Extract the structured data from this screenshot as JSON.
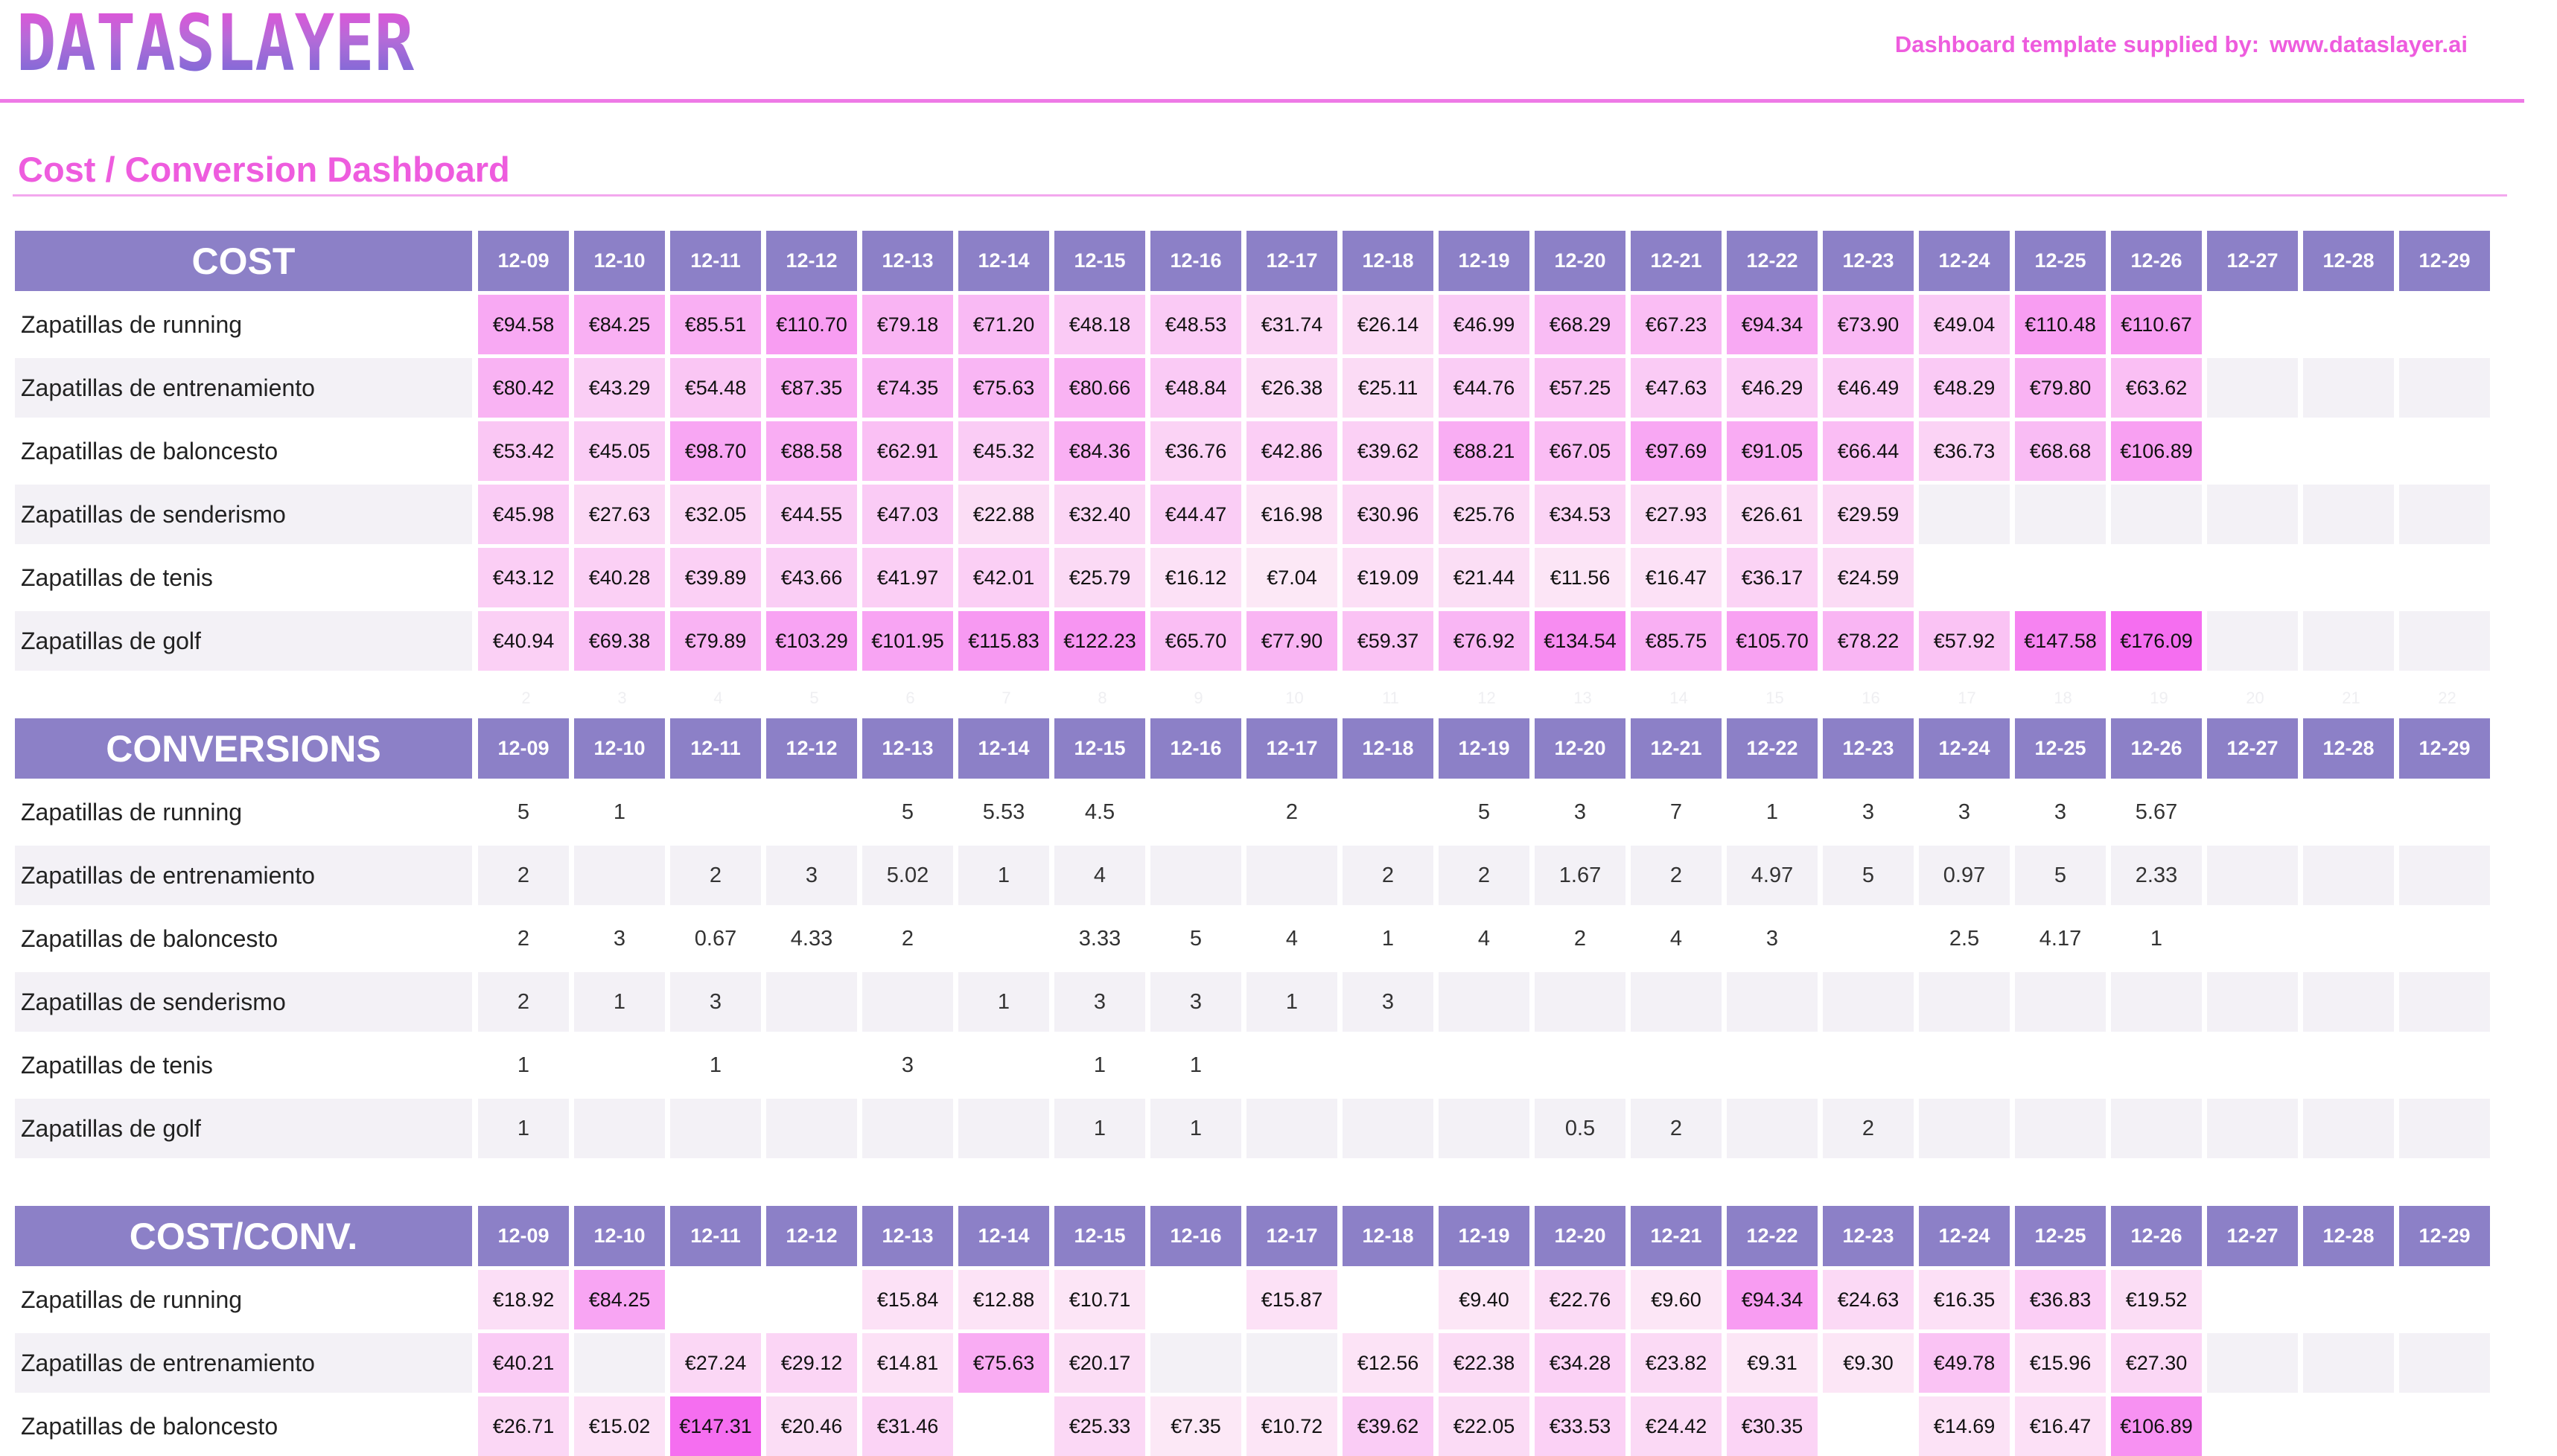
{
  "header": {
    "logo_text": "DATASLAYER",
    "supplied_label": "Dashboard template supplied by:",
    "supplied_url": "www.dataslayer.ai"
  },
  "title": "Cost / Conversion Dashboard",
  "colors": {
    "accent": "#ee5cde",
    "header_bg": "#8c80c7",
    "row_alt": "#f3f1f6",
    "heat_low": "#fbe4f4",
    "heat_high": "#f56ff0"
  },
  "dates": [
    "12-09",
    "12-10",
    "12-11",
    "12-12",
    "12-13",
    "12-14",
    "12-15",
    "12-16",
    "12-17",
    "12-18",
    "12-19",
    "12-20",
    "12-21",
    "12-22",
    "12-23",
    "12-24",
    "12-25",
    "12-26",
    "12-27",
    "12-28",
    "12-29"
  ],
  "index_row": [
    "2",
    "3",
    "4",
    "5",
    "6",
    "7",
    "8",
    "9",
    "10",
    "11",
    "12",
    "13",
    "14",
    "15",
    "16",
    "17",
    "18",
    "19",
    "20",
    "21",
    "22"
  ],
  "cost": {
    "label": "COST",
    "rows": [
      {
        "name": "Zapatillas de running",
        "values": [
          "€94.58",
          "€84.25",
          "€85.51",
          "€110.70",
          "€79.18",
          "€71.20",
          "€48.18",
          "€48.53",
          "€31.74",
          "€26.14",
          "€46.99",
          "€68.29",
          "€67.23",
          "€94.34",
          "€73.90",
          "€49.04",
          "€110.48",
          "€110.67",
          "",
          "",
          ""
        ]
      },
      {
        "name": "Zapatillas de entrenamiento",
        "values": [
          "€80.42",
          "€43.29",
          "€54.48",
          "€87.35",
          "€74.35",
          "€75.63",
          "€80.66",
          "€48.84",
          "€26.38",
          "€25.11",
          "€44.76",
          "€57.25",
          "€47.63",
          "€46.29",
          "€46.49",
          "€48.29",
          "€79.80",
          "€63.62",
          "",
          "",
          ""
        ]
      },
      {
        "name": "Zapatillas de baloncesto",
        "values": [
          "€53.42",
          "€45.05",
          "€98.70",
          "€88.58",
          "€62.91",
          "€45.32",
          "€84.36",
          "€36.76",
          "€42.86",
          "€39.62",
          "€88.21",
          "€67.05",
          "€97.69",
          "€91.05",
          "€66.44",
          "€36.73",
          "€68.68",
          "€106.89",
          "",
          "",
          ""
        ]
      },
      {
        "name": "Zapatillas de senderismo",
        "values": [
          "€45.98",
          "€27.63",
          "€32.05",
          "€44.55",
          "€47.03",
          "€22.88",
          "€32.40",
          "€44.47",
          "€16.98",
          "€30.96",
          "€25.76",
          "€34.53",
          "€27.93",
          "€26.61",
          "€29.59",
          "",
          "",
          "",
          "",
          "",
          ""
        ]
      },
      {
        "name": "Zapatillas de tenis",
        "values": [
          "€43.12",
          "€40.28",
          "€39.89",
          "€43.66",
          "€41.97",
          "€42.01",
          "€25.79",
          "€16.12",
          "€7.04",
          "€19.09",
          "€21.44",
          "€11.56",
          "€16.47",
          "€36.17",
          "€24.59",
          "",
          "",
          "",
          "",
          "",
          ""
        ]
      },
      {
        "name": "Zapatillas de golf",
        "values": [
          "€40.94",
          "€69.38",
          "€79.89",
          "€103.29",
          "€101.95",
          "€115.83",
          "€122.23",
          "€65.70",
          "€77.90",
          "€59.37",
          "€76.92",
          "€134.54",
          "€85.75",
          "€105.70",
          "€78.22",
          "€57.92",
          "€147.58",
          "€176.09",
          "",
          "",
          ""
        ]
      }
    ]
  },
  "conversions": {
    "label": "CONVERSIONS",
    "rows": [
      {
        "name": "Zapatillas de running",
        "values": [
          "5",
          "1",
          "",
          "",
          "5",
          "5.53",
          "4.5",
          "",
          "2",
          "",
          "5",
          "3",
          "7",
          "1",
          "3",
          "3",
          "3",
          "5.67",
          "",
          "",
          ""
        ]
      },
      {
        "name": "Zapatillas de entrenamiento",
        "values": [
          "2",
          "",
          "2",
          "3",
          "5.02",
          "1",
          "4",
          "",
          "",
          "2",
          "2",
          "1.67",
          "2",
          "4.97",
          "5",
          "0.97",
          "5",
          "2.33",
          "",
          "",
          ""
        ]
      },
      {
        "name": "Zapatillas de baloncesto",
        "values": [
          "2",
          "3",
          "0.67",
          "4.33",
          "2",
          "",
          "3.33",
          "5",
          "4",
          "1",
          "4",
          "2",
          "4",
          "3",
          "",
          "2.5",
          "4.17",
          "1",
          "",
          "",
          ""
        ]
      },
      {
        "name": "Zapatillas de senderismo",
        "values": [
          "2",
          "1",
          "3",
          "",
          "",
          "1",
          "3",
          "3",
          "1",
          "3",
          "",
          "",
          "",
          "",
          "",
          "",
          "",
          "",
          "",
          "",
          ""
        ]
      },
      {
        "name": "Zapatillas de tenis",
        "values": [
          "1",
          "",
          "1",
          "",
          "3",
          "",
          "1",
          "1",
          "",
          "",
          "",
          "",
          "",
          "",
          "",
          "",
          "",
          "",
          "",
          "",
          ""
        ]
      },
      {
        "name": "Zapatillas de golf",
        "values": [
          "1",
          "",
          "",
          "",
          "",
          "",
          "1",
          "1",
          "",
          "",
          "",
          "0.5",
          "2",
          "",
          "2",
          "",
          "",
          "",
          "",
          "",
          ""
        ]
      }
    ]
  },
  "costconv": {
    "label": "COST/CONV.",
    "rows": [
      {
        "name": "Zapatillas de running",
        "values": [
          "€18.92",
          "€84.25",
          "",
          "",
          "€15.84",
          "€12.88",
          "€10.71",
          "",
          "€15.87",
          "",
          "€9.40",
          "€22.76",
          "€9.60",
          "€94.34",
          "€24.63",
          "€16.35",
          "€36.83",
          "€19.52",
          "",
          "",
          ""
        ]
      },
      {
        "name": "Zapatillas de entrenamiento",
        "values": [
          "€40.21",
          "",
          "€27.24",
          "€29.12",
          "€14.81",
          "€75.63",
          "€20.17",
          "",
          "",
          "€12.56",
          "€22.38",
          "€34.28",
          "€23.82",
          "€9.31",
          "€9.30",
          "€49.78",
          "€15.96",
          "€27.30",
          "",
          "",
          ""
        ]
      },
      {
        "name": "Zapatillas de baloncesto",
        "values": [
          "€26.71",
          "€15.02",
          "€147.31",
          "€20.46",
          "€31.46",
          "",
          "€25.33",
          "€7.35",
          "€10.72",
          "€39.62",
          "€22.05",
          "€33.53",
          "€24.42",
          "€30.35",
          "",
          "€14.69",
          "€16.47",
          "€106.89",
          "",
          "",
          ""
        ]
      }
    ]
  }
}
